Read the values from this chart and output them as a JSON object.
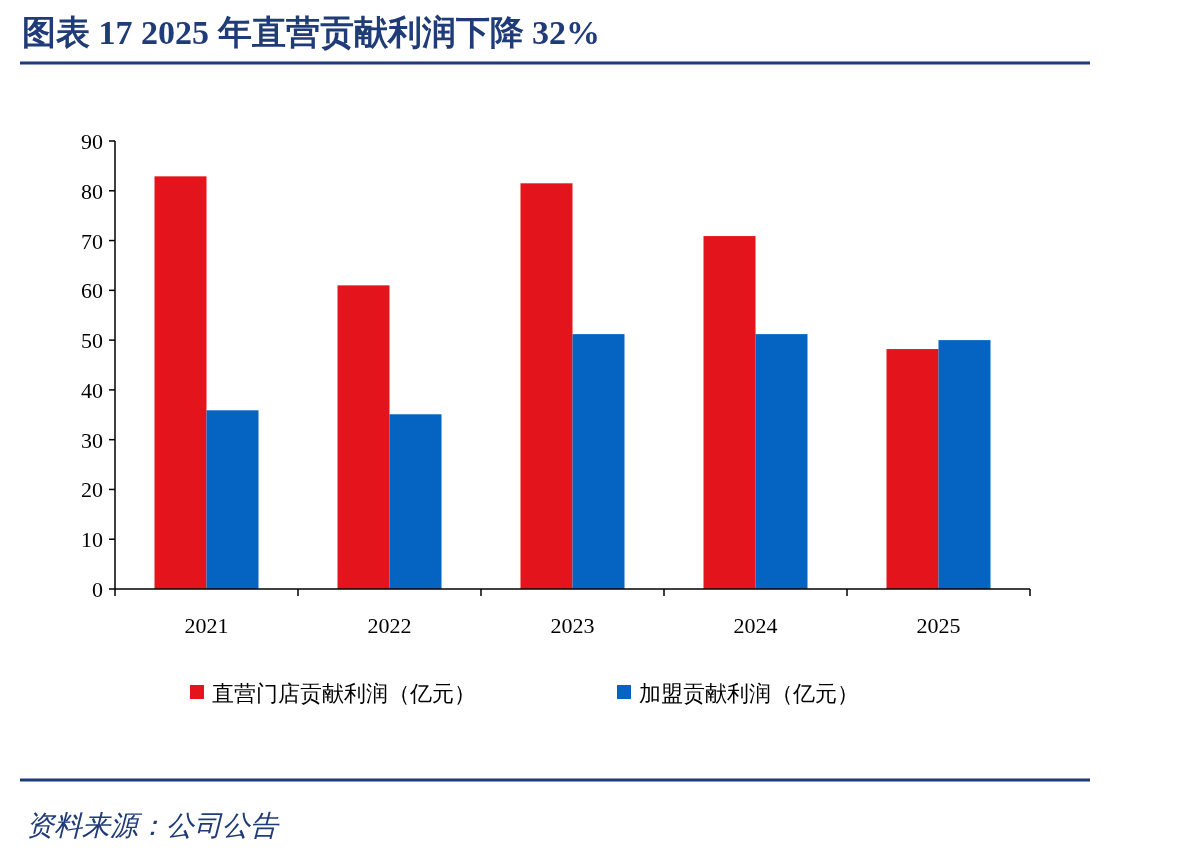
{
  "chart_data": {
    "type": "bar",
    "title": "图表 17   2025 年直营贡献利润下降 32%",
    "categories": [
      "2021",
      "2022",
      "2023",
      "2024",
      "2025"
    ],
    "series": [
      {
        "name": "直营门店贡献利润（亿元）",
        "color": "#e3141c",
        "values": [
          82.9,
          61.0,
          81.5,
          70.9,
          48.2
        ]
      },
      {
        "name": "加盟贡献利润（亿元）",
        "color": "#0563c1",
        "values": [
          35.9,
          35.1,
          51.2,
          51.2,
          50.0
        ]
      }
    ],
    "ylim": [
      0,
      90
    ],
    "yticks": [
      0,
      10,
      20,
      30,
      40,
      50,
      60,
      70,
      80,
      90
    ],
    "grid": false,
    "legend": "bottom",
    "annotations": [
      "资料来源：公司公告"
    ]
  }
}
